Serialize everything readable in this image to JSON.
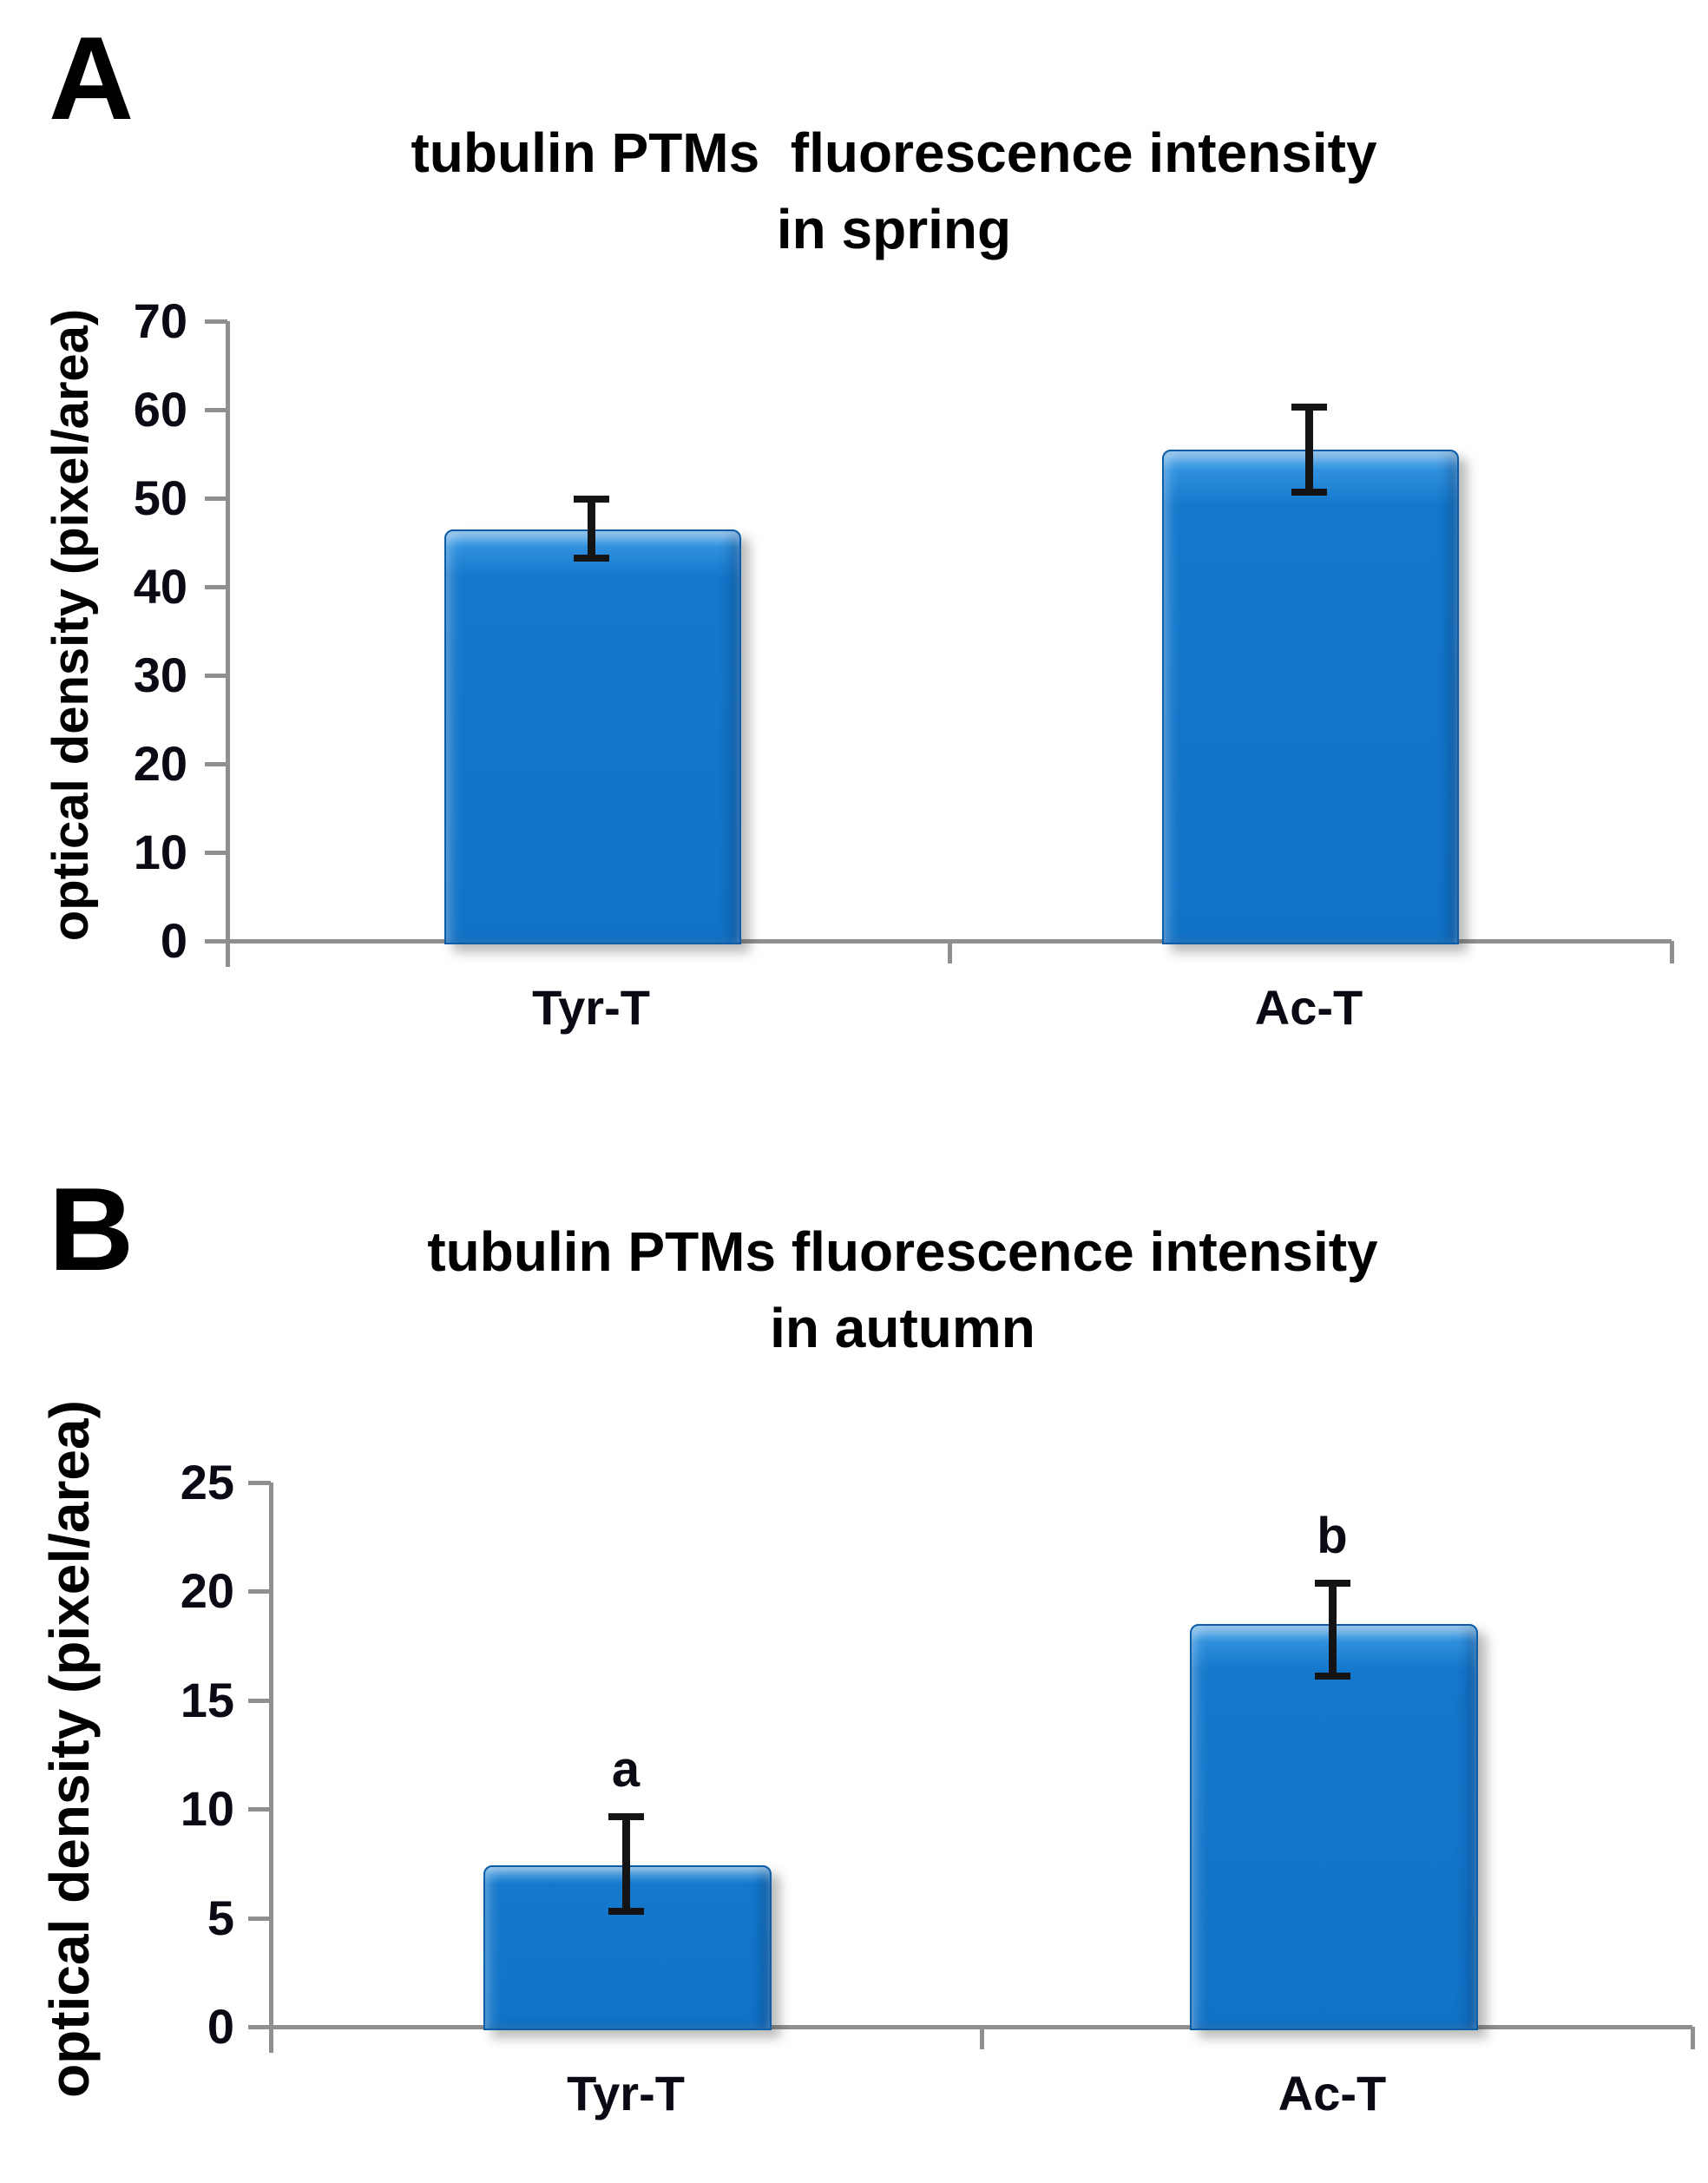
{
  "figure_title": "tubulin PTMs fluorescence intensity in spring and autumn",
  "colors": {
    "bar_fill": "#1173c7",
    "bar_highlight": "#6ab7f2",
    "bar_border": "#0c5da8",
    "axis_gray": "#8f8f8f",
    "error_bar": "#141414",
    "text": "#000000",
    "background": "#ffffff"
  },
  "chart_data": [
    {
      "type": "bar",
      "panel_label": "A",
      "title": "tubulin PTMs  fluorescence intensity\nin spring",
      "ylabel": "optical density (pixel/area)",
      "xlabel": "",
      "categories": [
        "Tyr-T",
        "Ac-T"
      ],
      "values": [
        46.5,
        55.5
      ],
      "error_plus": [
        3.5,
        4.9
      ],
      "error_minus": [
        3.3,
        4.8
      ],
      "sig_letters": [
        "",
        ""
      ],
      "ylim": [
        0,
        70
      ],
      "yticks": [
        0,
        10,
        20,
        30,
        40,
        50,
        60,
        70
      ],
      "grid": false,
      "legend": "none"
    },
    {
      "type": "bar",
      "panel_label": "B",
      "title": "tubulin PTMs fluorescence intensity\nin autumn",
      "ylabel": "optical density (pixel/area)",
      "xlabel": "",
      "categories": [
        "Tyr-T",
        "Ac-T"
      ],
      "values": [
        7.4,
        18.5
      ],
      "error_plus": [
        2.3,
        1.9
      ],
      "error_minus": [
        2.1,
        2.4
      ],
      "sig_letters": [
        "a",
        "b"
      ],
      "ylim": [
        0,
        25
      ],
      "yticks": [
        0,
        5,
        10,
        15,
        20,
        25
      ],
      "grid": false,
      "legend": "none"
    }
  ]
}
